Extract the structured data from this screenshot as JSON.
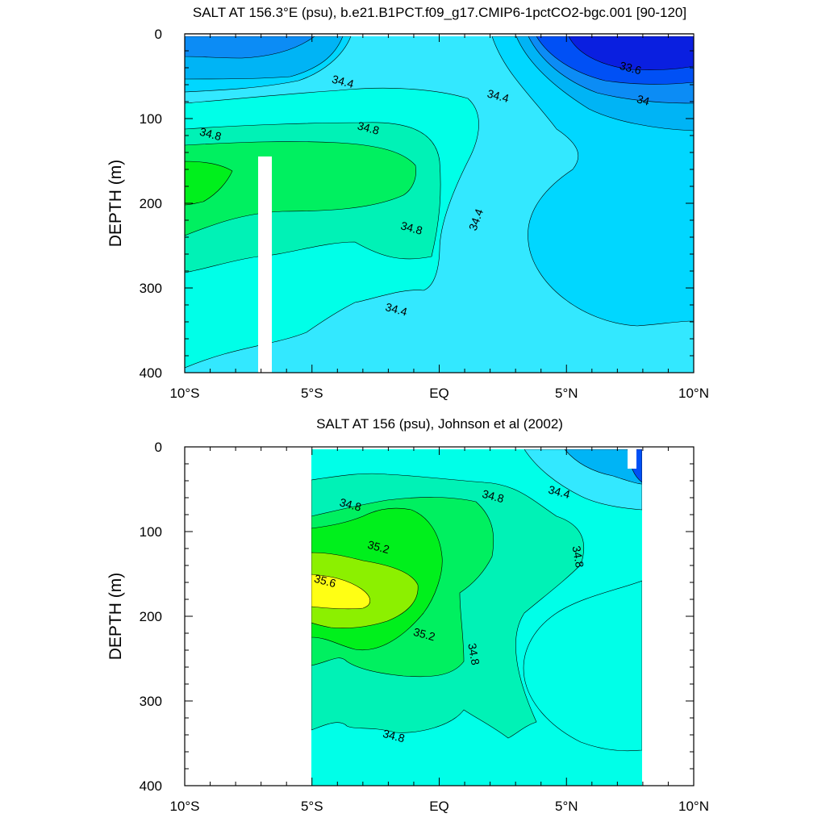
{
  "chart_data": [
    {
      "type": "contour",
      "title": "SALT AT 156.3°E (psu), b.e21.B1PCT.f09_g17.CMIP6-1pctCO2-bgc.001 [90-120]",
      "xlabel": "",
      "ylabel": "DEPTH (m)",
      "xlim": [
        -10,
        10
      ],
      "ylim": [
        400,
        0
      ],
      "x_ticks": [
        -10,
        -5,
        0,
        5,
        10
      ],
      "x_tick_labels": [
        "10°S",
        "5°S",
        "EQ",
        "5°N",
        "10°N"
      ],
      "y_ticks": [
        0,
        100,
        200,
        300,
        400
      ],
      "y_tick_labels": [
        "0",
        "100",
        "200",
        "300",
        "400"
      ],
      "contour_interval": 0.2,
      "contour_labels": [
        {
          "text": "33.6",
          "x": 7.5,
          "depth": 42
        },
        {
          "text": "34",
          "x": 8.0,
          "depth": 80
        },
        {
          "text": "34.4",
          "x": -3.8,
          "depth": 58
        },
        {
          "text": "34.4",
          "x": 2.3,
          "depth": 75
        },
        {
          "text": "34.4",
          "x": 1.5,
          "depth": 220
        },
        {
          "text": "34.4",
          "x": -1.7,
          "depth": 327
        },
        {
          "text": "34.8",
          "x": -9.0,
          "depth": 120
        },
        {
          "text": "34.8",
          "x": -2.8,
          "depth": 113
        },
        {
          "text": "34.8",
          "x": -1.1,
          "depth": 231
        }
      ],
      "missing_column": {
        "x_range": [
          -7.1,
          -6.6
        ],
        "depth_range": [
          145,
          400
        ]
      },
      "levels": [
        {
          "min": 33.4,
          "color": "#0a1fe0"
        },
        {
          "min": 33.6,
          "color": "#0050f5"
        },
        {
          "min": 33.8,
          "color": "#0c8cf5"
        },
        {
          "min": 34.0,
          "color": "#00b4f5"
        },
        {
          "min": 34.2,
          "color": "#00d7ff"
        },
        {
          "min": 34.4,
          "color": "#33e8ff"
        },
        {
          "min": 34.6,
          "color": "#00ffe8"
        },
        {
          "min": 34.8,
          "color": "#00f2b6"
        },
        {
          "min": 35.0,
          "color": "#00f060"
        },
        {
          "min": 35.2,
          "color": "#00f01c"
        }
      ]
    },
    {
      "type": "contour",
      "title": "SALT AT 156 (psu), Johnson et al (2002)",
      "xlabel": "",
      "ylabel": "DEPTH (m)",
      "xlim": [
        -10,
        10
      ],
      "ylim": [
        400,
        0
      ],
      "data_x_range": [
        -5,
        8
      ],
      "x_ticks": [
        -10,
        -5,
        0,
        5,
        10
      ],
      "x_tick_labels": [
        "10°S",
        "5°S",
        "EQ",
        "5°N",
        "10°N"
      ],
      "y_ticks": [
        0,
        100,
        200,
        300,
        400
      ],
      "y_tick_labels": [
        "0",
        "100",
        "200",
        "300",
        "400"
      ],
      "contour_interval": 0.2,
      "contour_labels": [
        {
          "text": "34.4",
          "x": 4.7,
          "depth": 55
        },
        {
          "text": "34.8",
          "x": -3.5,
          "depth": 70
        },
        {
          "text": "34.8",
          "x": 2.1,
          "depth": 60
        },
        {
          "text": "34.8",
          "x": 5.4,
          "depth": 130
        },
        {
          "text": "34.8",
          "x": 1.3,
          "depth": 245
        },
        {
          "text": "34.8",
          "x": -1.8,
          "depth": 343
        },
        {
          "text": "35.2",
          "x": -2.4,
          "depth": 120
        },
        {
          "text": "35.2",
          "x": -0.6,
          "depth": 223
        },
        {
          "text": "35.6",
          "x": -4.5,
          "depth": 160
        }
      ],
      "levels": [
        {
          "min": 34.0,
          "color": "#0050f5"
        },
        {
          "min": 34.2,
          "color": "#00b4f5"
        },
        {
          "min": 34.4,
          "color": "#33e8ff"
        },
        {
          "min": 34.6,
          "color": "#00ffe8"
        },
        {
          "min": 34.8,
          "color": "#00f2b6"
        },
        {
          "min": 35.0,
          "color": "#00f060"
        },
        {
          "min": 35.2,
          "color": "#00f01c"
        },
        {
          "min": 35.4,
          "color": "#8cf000"
        },
        {
          "min": 35.6,
          "color": "#ffff14"
        }
      ]
    }
  ]
}
